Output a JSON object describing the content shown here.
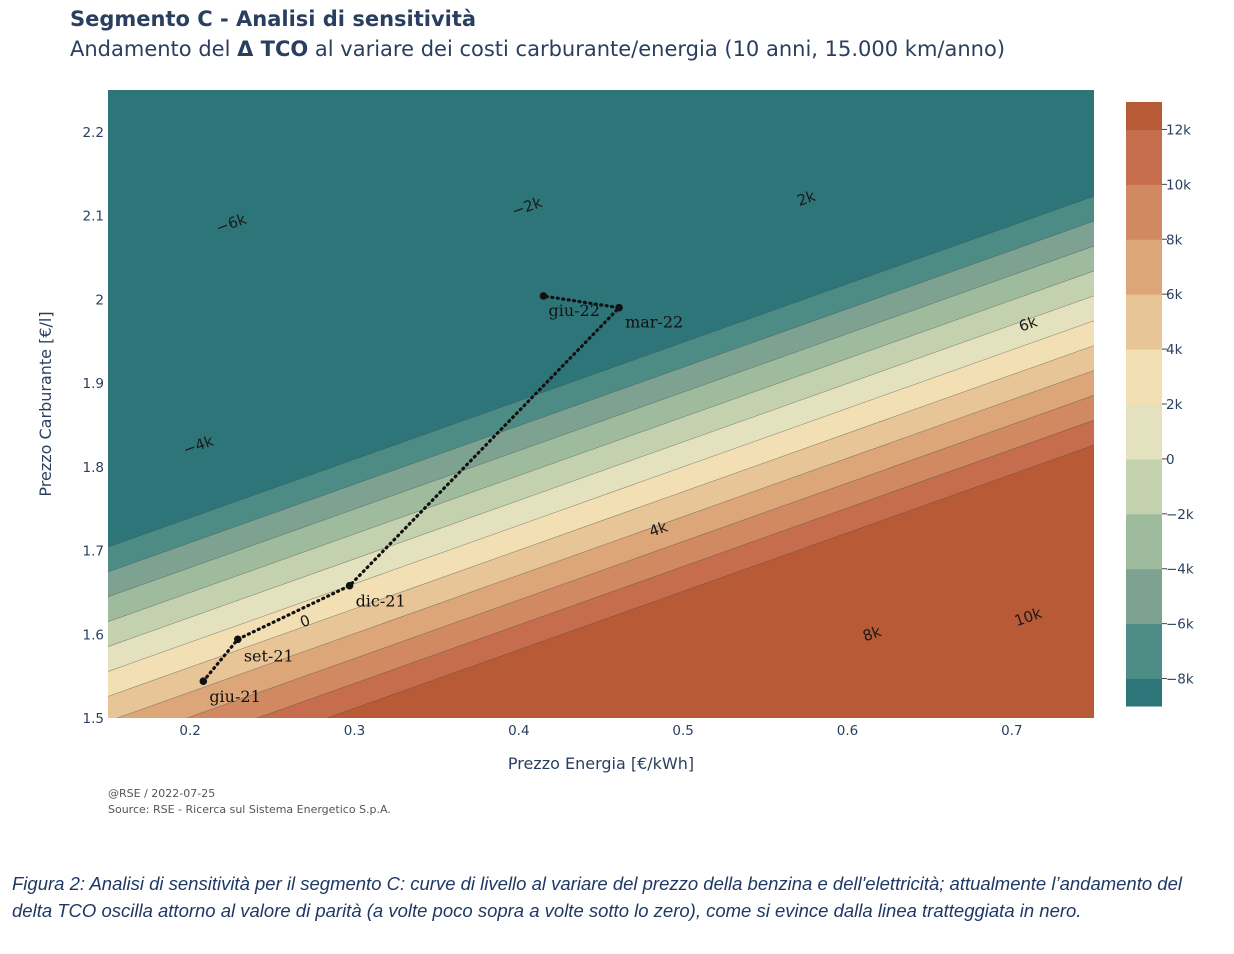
{
  "chart_data": {
    "type": "contour",
    "title": "Segmento C - Analisi di sensitività",
    "subtitle": {
      "prefix": "Andamento del ",
      "bold": "Δ TCO",
      "suffix": " al variare dei costi carburante/energia (10 anni, 15.000 km/anno)"
    },
    "xlabel": "Prezzo Energia [€/kWh]",
    "ylabel": "Prezzo Carburante [€/l]",
    "xlim": [
      0.15,
      0.75
    ],
    "ylim": [
      1.5,
      2.25
    ],
    "x_ticks": [
      0.2,
      0.3,
      0.4,
      0.5,
      0.6,
      0.7
    ],
    "x_tick_labels": [
      "0.2",
      "0.3",
      "0.4",
      "0.5",
      "0.6",
      "0.7"
    ],
    "y_ticks": [
      1.5,
      1.6,
      1.7,
      1.8,
      1.9,
      2.0,
      2.1,
      2.2
    ],
    "y_tick_labels": [
      "1.5",
      "1.6",
      "1.7",
      "1.8",
      "1.9",
      "2",
      "2.1",
      "2.2"
    ],
    "contour_levels": [
      -8000,
      -6000,
      -4000,
      -2000,
      0,
      2000,
      4000,
      6000,
      8000,
      10000,
      12000
    ],
    "contour_labels": [
      {
        "text": "−6k",
        "x": 0.225,
        "y": 2.09
      },
      {
        "text": "−4k",
        "x": 0.205,
        "y": 1.825
      },
      {
        "text": "−2k",
        "x": 0.405,
        "y": 2.11
      },
      {
        "text": "0",
        "x": 0.27,
        "y": 1.615
      },
      {
        "text": "2k",
        "x": 0.575,
        "y": 2.12
      },
      {
        "text": "4k",
        "x": 0.485,
        "y": 1.725
      },
      {
        "text": "6k",
        "x": 0.71,
        "y": 1.97
      },
      {
        "text": "8k",
        "x": 0.615,
        "y": 1.6
      },
      {
        "text": "10k",
        "x": 0.71,
        "y": 1.62
      }
    ],
    "colorbar": {
      "range": [
        -9000,
        13000
      ],
      "tick_values": [
        12000,
        10000,
        8000,
        6000,
        4000,
        2000,
        0,
        -2000,
        -4000,
        -6000,
        -8000
      ],
      "tick_labels": [
        "12k",
        "10k",
        "8k",
        "6k",
        "4k",
        "2k",
        "0",
        "−2k",
        "−4k",
        "−6k",
        "−8k"
      ],
      "colors": [
        "#2e7579",
        "#4d8b85",
        "#7ea291",
        "#9fbb9e",
        "#c4d1ae",
        "#e4e2be",
        "#f2e0b4",
        "#e7c597",
        "#dca679",
        "#d18962",
        "#c56d4c",
        "#b85a35"
      ]
    },
    "path_series": {
      "points": [
        {
          "label": "giu-21",
          "x": 0.208,
          "y": 1.544
        },
        {
          "label": "set-21",
          "x": 0.229,
          "y": 1.594
        },
        {
          "label": "dic-21",
          "x": 0.297,
          "y": 1.658
        },
        {
          "label": "mar-22",
          "x": 0.461,
          "y": 1.99
        },
        {
          "label": "giu-22",
          "x": 0.415,
          "y": 2.004
        }
      ]
    }
  },
  "footer": {
    "credit": "@RSE / 2022-07-25",
    "source": "Source: RSE - Ricerca sul Sistema Energetico S.p.A."
  },
  "caption": "Figura 2: Analisi di sensitività per il segmento C: curve di livello al variare del prezzo della benzina e dell'elettricità; attualmente l’andamento del delta TCO oscilla attorno al valore di parità (a volte poco sopra a volte sotto lo zero), come si evince dalla linea tratteggiata in nero."
}
